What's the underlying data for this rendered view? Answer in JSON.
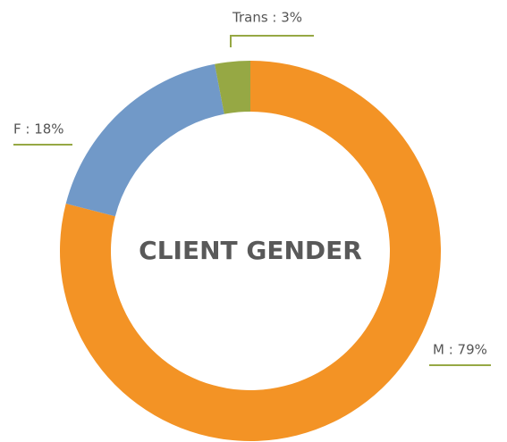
{
  "chart_data": {
    "type": "donut",
    "title": "CLIENT GENDER",
    "values": [
      79,
      18,
      3
    ],
    "value_labels": [
      "M : 79%",
      "F : 18%",
      "Trans : 3%"
    ],
    "colors": [
      "#f39325",
      "#7199c8",
      "#96a844"
    ],
    "leader_color": "#96a844"
  }
}
